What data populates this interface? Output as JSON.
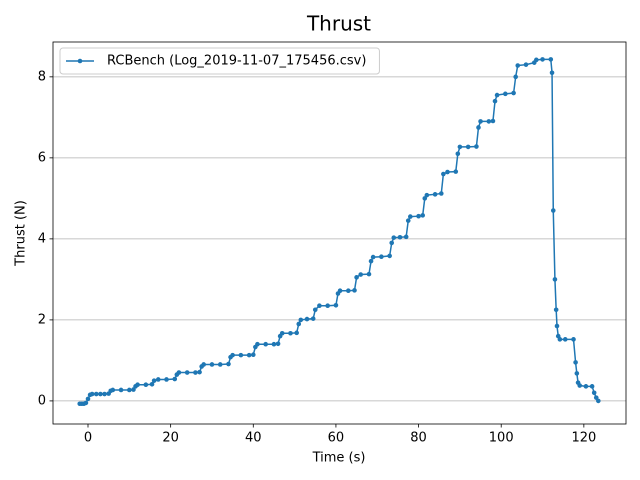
{
  "chart_data": {
    "type": "line",
    "title": "Thrust",
    "x_label": "Time (s)",
    "y_label": "Thrust (N)",
    "x": [
      -2,
      -1.5,
      -1,
      -0.5,
      0,
      0.5,
      1,
      2,
      3,
      4,
      5,
      5.5,
      6,
      8,
      10,
      11,
      11.5,
      12,
      14,
      15.5,
      16,
      17,
      19,
      21,
      21.5,
      22,
      24,
      26,
      27,
      27.5,
      28,
      30,
      32,
      34,
      34.5,
      35,
      37,
      39,
      40,
      40.5,
      41,
      43,
      45,
      46,
      46.5,
      47,
      49,
      50.5,
      51,
      51.5,
      53,
      54.5,
      55,
      56,
      58,
      60,
      60.5,
      61,
      63,
      64.5,
      65,
      66,
      68,
      68.5,
      69,
      71,
      73,
      73.5,
      74,
      75.5,
      77,
      77.5,
      78,
      80,
      81,
      81.5,
      82,
      84,
      85.5,
      86,
      87,
      89,
      89.5,
      90,
      92,
      94,
      94.5,
      95,
      97,
      98,
      98.5,
      99,
      101,
      103,
      103.5,
      104,
      106,
      108,
      108.5,
      110,
      112,
      112.3,
      112.6,
      113,
      113.3,
      113.5,
      113.8,
      114.2,
      115.5,
      117.5,
      118,
      118.3,
      118.6,
      119,
      120.5,
      122,
      122.5,
      123,
      123.5
    ],
    "series": [
      {
        "name": "RCBench (Log_2019-11-07_175456.csv)",
        "color": "#1f77b4",
        "values": [
          -0.07,
          -0.07,
          -0.07,
          -0.05,
          0.05,
          0.15,
          0.17,
          0.17,
          0.17,
          0.17,
          0.18,
          0.25,
          0.27,
          0.27,
          0.27,
          0.28,
          0.36,
          0.4,
          0.4,
          0.41,
          0.5,
          0.53,
          0.53,
          0.54,
          0.65,
          0.7,
          0.7,
          0.7,
          0.71,
          0.85,
          0.9,
          0.9,
          0.9,
          0.91,
          1.08,
          1.13,
          1.13,
          1.13,
          1.14,
          1.33,
          1.4,
          1.4,
          1.4,
          1.41,
          1.6,
          1.67,
          1.67,
          1.68,
          1.9,
          2.0,
          2.02,
          2.03,
          2.25,
          2.35,
          2.35,
          2.36,
          2.65,
          2.72,
          2.72,
          2.73,
          3.05,
          3.12,
          3.13,
          3.45,
          3.55,
          3.56,
          3.58,
          3.9,
          4.03,
          4.04,
          4.05,
          4.45,
          4.55,
          4.56,
          4.58,
          5.0,
          5.08,
          5.1,
          5.12,
          5.6,
          5.65,
          5.66,
          6.1,
          6.27,
          6.27,
          6.28,
          6.75,
          6.9,
          6.9,
          6.91,
          7.4,
          7.55,
          7.58,
          7.6,
          8.0,
          8.28,
          8.3,
          8.35,
          8.42,
          8.43,
          8.43,
          8.1,
          4.7,
          3.0,
          2.25,
          1.85,
          1.6,
          1.52,
          1.52,
          1.52,
          0.95,
          0.68,
          0.45,
          0.38,
          0.36,
          0.36,
          0.2,
          0.08,
          0.0
        ]
      }
    ],
    "xlim": [
      -8.47,
      130.2
    ],
    "ylim": [
      -0.57,
      8.86
    ],
    "xticks": [
      0,
      20,
      40,
      60,
      80,
      100,
      120
    ],
    "yticks": [
      0,
      2,
      4,
      6,
      8
    ],
    "grid": "y",
    "legend": "upper left"
  }
}
